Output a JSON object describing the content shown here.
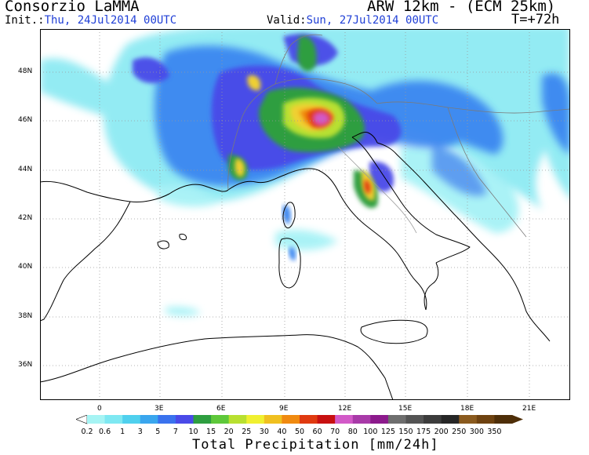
{
  "header": {
    "organization": "Consorzio LaMMA",
    "model": "ARW 12km - (ECM 25km)",
    "init_prefix": "Init.:",
    "init_value": "Thu, 24Jul2014 00UTC",
    "valid_prefix": "Valid:",
    "valid_value": "Sun, 27Jul2014 00UTC",
    "lead_time": "T=+72h"
  },
  "map": {
    "lat_labels": [
      "48N",
      "46N",
      "44N",
      "42N",
      "40N",
      "38N",
      "36N"
    ],
    "lon_labels": [
      "0",
      "3E",
      "6E",
      "9E",
      "12E",
      "15E",
      "18E",
      "21E"
    ],
    "colors": {
      "land_border": "#000000",
      "grid": "#9a9a9a",
      "region_border": "#8a8a8a"
    }
  },
  "colorbar": {
    "title": "Total Precipitation [mm/24h]",
    "levels": [
      "0.2",
      "0.6",
      "1",
      "3",
      "5",
      "7",
      "10",
      "15",
      "20",
      "25",
      "30",
      "40",
      "50",
      "60",
      "70",
      "80",
      "100",
      "125",
      "150",
      "175",
      "200",
      "250",
      "300",
      "350"
    ],
    "colors": [
      "#a6f4f4",
      "#7ee8f2",
      "#4fd0ee",
      "#3aa6ee",
      "#3a72ee",
      "#4a4ae8",
      "#2e9e40",
      "#5ec83a",
      "#b8e030",
      "#f0f030",
      "#f0c020",
      "#f08a10",
      "#e03a10",
      "#c81010",
      "#d25ac8",
      "#a83aa8",
      "#8c1a8c",
      "#6e6e6e",
      "#545454",
      "#3c3c3c",
      "#262626",
      "#8a5a1e",
      "#6e4210",
      "#4e2e08"
    ]
  }
}
